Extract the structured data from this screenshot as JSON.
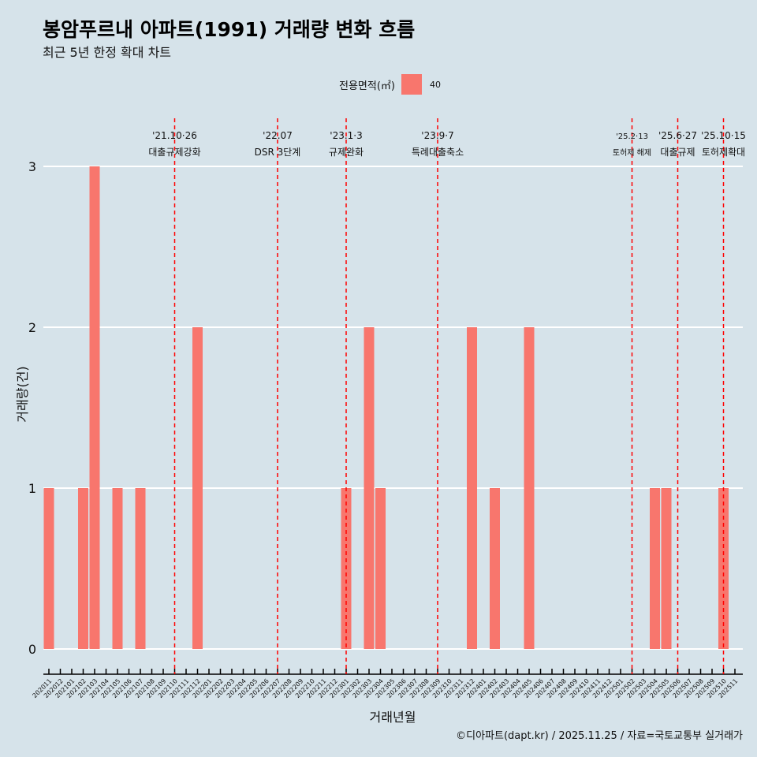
{
  "title": "봉암푸르내 아파트(1991) 거래량 변화 흐름",
  "subtitle": "최근 5년 한정 확대 차트",
  "caption": "©디아파트(dapt.kr) / 2025.11.25 / 자료=국토교통부 실거래가",
  "colors": {
    "bar": "#f8766d",
    "vline": "#ff0000",
    "bg": "#d6e3ea"
  },
  "chart_data": {
    "type": "bar",
    "xlabel": "거래년월",
    "ylabel": "거래량(건)",
    "ylim": [
      0,
      3
    ],
    "yticks": [
      "0",
      "1",
      "2",
      "3"
    ],
    "legend": {
      "title": "전용면적(㎡)",
      "entries": [
        "40"
      ],
      "placement": "top"
    },
    "categories": [
      "202011",
      "202012",
      "202101",
      "202102",
      "202103",
      "202104",
      "202105",
      "202106",
      "202107",
      "202108",
      "202109",
      "202110",
      "202111",
      "202112",
      "202201",
      "202202",
      "202203",
      "202204",
      "202205",
      "202206",
      "202207",
      "202208",
      "202209",
      "202210",
      "202211",
      "202212",
      "202301",
      "202302",
      "202303",
      "202304",
      "202305",
      "202306",
      "202307",
      "202308",
      "202309",
      "202310",
      "202311",
      "202312",
      "202401",
      "202402",
      "202403",
      "202404",
      "202405",
      "202406",
      "202407",
      "202408",
      "202409",
      "202410",
      "202411",
      "202412",
      "202501",
      "202502",
      "202503",
      "202504",
      "202505",
      "202506",
      "202507",
      "202508",
      "202509",
      "202510",
      "202511"
    ],
    "series": [
      {
        "name": "40",
        "values": [
          1,
          0,
          0,
          1,
          3,
          0,
          1,
          0,
          1,
          0,
          0,
          0,
          0,
          2,
          0,
          0,
          0,
          0,
          0,
          0,
          0,
          0,
          0,
          0,
          0,
          0,
          1,
          0,
          2,
          1,
          0,
          0,
          0,
          0,
          0,
          0,
          0,
          2,
          0,
          1,
          0,
          0,
          2,
          0,
          0,
          0,
          0,
          0,
          0,
          0,
          0,
          0,
          0,
          1,
          1,
          0,
          0,
          0,
          0,
          1,
          0
        ]
      }
    ],
    "annotations": [
      {
        "category": "202110",
        "date": "'21.10·26",
        "label": "대출규제강화"
      },
      {
        "category": "202207",
        "date": "'22.07",
        "label": "DSR 3단계"
      },
      {
        "category": "202301",
        "date": "'23.1·3",
        "label": "규제완화"
      },
      {
        "category": "202309",
        "date": "'23.9·7",
        "label": "특례대출축소"
      },
      {
        "category": "202502",
        "date": "'25.2·13",
        "label": "토허제 해제",
        "small": true
      },
      {
        "category": "202506",
        "date": "'25.6·27",
        "label": "대출규제"
      },
      {
        "category": "202510",
        "date": "'25.10·15",
        "label": "토허제확대"
      }
    ]
  }
}
